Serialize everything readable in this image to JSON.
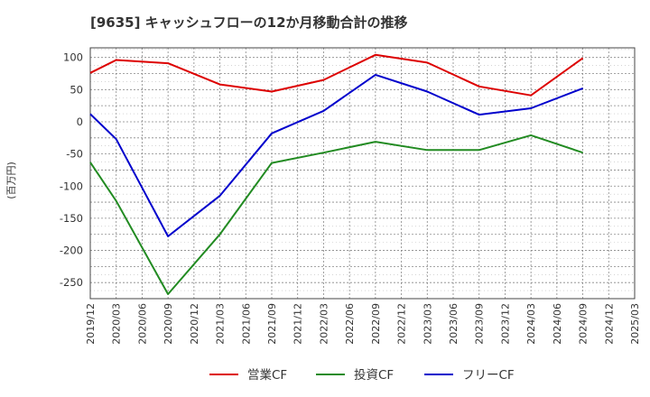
{
  "chart_data": {
    "type": "line",
    "title": "[9635]  キャッシュフローの12か月移動合計の推移",
    "xlabel": "",
    "ylabel": "(百万円)",
    "ylim": [
      -275,
      115
    ],
    "yticks": [
      100,
      50,
      0,
      -50,
      -100,
      -150,
      -200,
      -250
    ],
    "x_ticks": [
      "2019/12",
      "2020/03",
      "2020/06",
      "2020/09",
      "2020/12",
      "2021/03",
      "2021/06",
      "2021/09",
      "2021/12",
      "2022/03",
      "2022/06",
      "2022/09",
      "2022/12",
      "2023/03",
      "2023/06",
      "2023/09",
      "2023/12",
      "2024/03",
      "2024/06",
      "2024/09",
      "2024/12",
      "2025/03"
    ],
    "grid": true,
    "legend_position": "bottom",
    "series": [
      {
        "name": "営業CF",
        "color": "#dd0000",
        "points": [
          [
            "2019/12",
            76
          ],
          [
            "2020/03",
            96
          ],
          [
            "2020/09",
            91
          ],
          [
            "2021/03",
            58
          ],
          [
            "2021/09",
            47
          ],
          [
            "2022/03",
            65
          ],
          [
            "2022/09",
            104
          ],
          [
            "2023/03",
            92
          ],
          [
            "2023/09",
            55
          ],
          [
            "2024/03",
            41
          ],
          [
            "2024/09",
            99
          ]
        ]
      },
      {
        "name": "投資CF",
        "color": "#228b22",
        "points": [
          [
            "2019/12",
            -63
          ],
          [
            "2020/03",
            -123
          ],
          [
            "2020/09",
            -268
          ],
          [
            "2021/03",
            -175
          ],
          [
            "2021/09",
            -64
          ],
          [
            "2022/03",
            -48
          ],
          [
            "2022/09",
            -31
          ],
          [
            "2023/03",
            -44
          ],
          [
            "2023/09",
            -44
          ],
          [
            "2024/03",
            -21
          ],
          [
            "2024/09",
            -48
          ]
        ]
      },
      {
        "name": "フリーCF",
        "color": "#0000cc",
        "points": [
          [
            "2019/12",
            12
          ],
          [
            "2020/03",
            -27
          ],
          [
            "2020/09",
            -178
          ],
          [
            "2021/03",
            -115
          ],
          [
            "2021/09",
            -18
          ],
          [
            "2022/03",
            17
          ],
          [
            "2022/09",
            73
          ],
          [
            "2023/03",
            47
          ],
          [
            "2023/09",
            11
          ],
          [
            "2024/03",
            21
          ],
          [
            "2024/09",
            52
          ]
        ]
      }
    ]
  }
}
